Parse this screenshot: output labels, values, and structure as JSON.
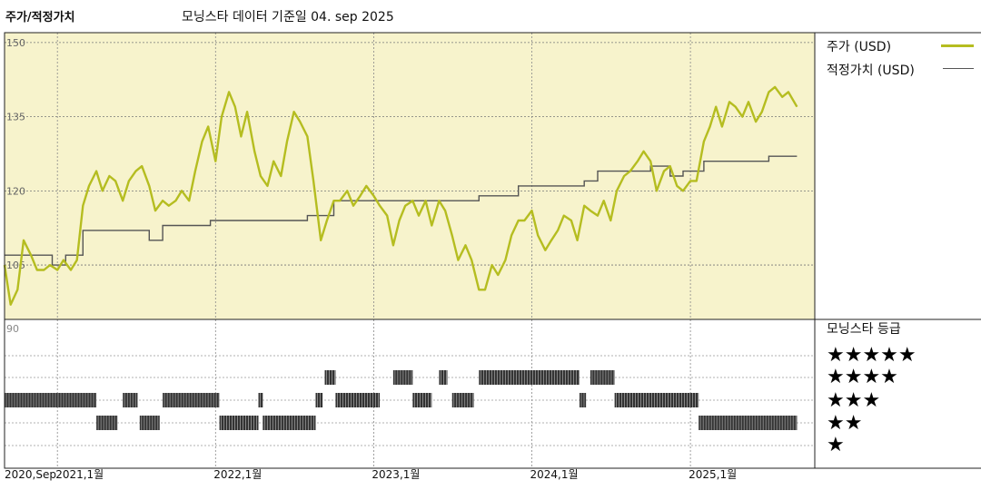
{
  "title": "주가/적정가치",
  "subtitle": "모닝스타 데이터 기준일 04. sep 2025",
  "legend": {
    "price_label": "주가 (USD)",
    "fair_label": "적정가치 (USD)",
    "price_color": "#b5bd20",
    "fair_color": "#555555"
  },
  "rating_panel": {
    "title": "모닝스타 등급",
    "levels": [
      "★★★★★",
      "★★★★",
      "★★★",
      "★★",
      "★"
    ]
  },
  "colors": {
    "price_area_bg": "#f7f3cc",
    "rating_bar": "#333333"
  },
  "chart_data": {
    "type": "line",
    "y_ticks": [
      {
        "value": 150,
        "label": "150"
      },
      {
        "value": 135,
        "label": "135"
      },
      {
        "value": 120,
        "label": "120"
      },
      {
        "value": 105,
        "label": "105"
      }
    ],
    "ylim": [
      94,
      152
    ],
    "rating_axis_label": "90",
    "x_ticks": [
      {
        "date": "2020-09-01",
        "label": "2020,Sep"
      },
      {
        "date": "2021-01-01",
        "label": "2021,1월"
      },
      {
        "date": "2022-01-01",
        "label": "2022,1월"
      },
      {
        "date": "2023-01-01",
        "label": "2023,1월"
      },
      {
        "date": "2024-01-01",
        "label": "2024,1월"
      },
      {
        "date": "2025-01-01",
        "label": "2025,1월"
      }
    ],
    "xlim": [
      "2020-09-01",
      "2025-10-15"
    ],
    "series": [
      {
        "name": "주가 (USD)",
        "points": [
          [
            "2020-09-01",
            105
          ],
          [
            "2020-09-15",
            97
          ],
          [
            "2020-10-01",
            100
          ],
          [
            "2020-10-15",
            110
          ],
          [
            "2020-11-01",
            107
          ],
          [
            "2020-11-15",
            104
          ],
          [
            "2020-12-01",
            104
          ],
          [
            "2020-12-15",
            105
          ],
          [
            "2021-01-01",
            104
          ],
          [
            "2021-01-15",
            106
          ],
          [
            "2021-02-01",
            104
          ],
          [
            "2021-02-15",
            106
          ],
          [
            "2021-03-01",
            117
          ],
          [
            "2021-03-15",
            121
          ],
          [
            "2021-04-01",
            124
          ],
          [
            "2021-04-15",
            120
          ],
          [
            "2021-05-01",
            123
          ],
          [
            "2021-05-15",
            122
          ],
          [
            "2021-06-01",
            118
          ],
          [
            "2021-06-15",
            122
          ],
          [
            "2021-07-01",
            124
          ],
          [
            "2021-07-15",
            125
          ],
          [
            "2021-08-01",
            121
          ],
          [
            "2021-08-15",
            116
          ],
          [
            "2021-09-01",
            118
          ],
          [
            "2021-09-15",
            117
          ],
          [
            "2021-10-01",
            118
          ],
          [
            "2021-10-15",
            120
          ],
          [
            "2021-11-01",
            118
          ],
          [
            "2021-11-15",
            124
          ],
          [
            "2021-12-01",
            130
          ],
          [
            "2021-12-15",
            133
          ],
          [
            "2022-01-01",
            126
          ],
          [
            "2022-01-15",
            135
          ],
          [
            "2022-02-01",
            140
          ],
          [
            "2022-02-15",
            137
          ],
          [
            "2022-03-01",
            131
          ],
          [
            "2022-03-15",
            136
          ],
          [
            "2022-04-01",
            128
          ],
          [
            "2022-04-15",
            123
          ],
          [
            "2022-05-01",
            121
          ],
          [
            "2022-05-15",
            126
          ],
          [
            "2022-06-01",
            123
          ],
          [
            "2022-06-15",
            130
          ],
          [
            "2022-07-01",
            136
          ],
          [
            "2022-07-15",
            134
          ],
          [
            "2022-08-01",
            131
          ],
          [
            "2022-08-15",
            122
          ],
          [
            "2022-09-01",
            110
          ],
          [
            "2022-09-15",
            114
          ],
          [
            "2022-10-01",
            118
          ],
          [
            "2022-10-15",
            118
          ],
          [
            "2022-11-01",
            120
          ],
          [
            "2022-11-15",
            117
          ],
          [
            "2022-12-01",
            119
          ],
          [
            "2022-12-15",
            121
          ],
          [
            "2023-01-01",
            119
          ],
          [
            "2023-01-15",
            117
          ],
          [
            "2023-02-01",
            115
          ],
          [
            "2023-02-15",
            109
          ],
          [
            "2023-03-01",
            114
          ],
          [
            "2023-03-15",
            117
          ],
          [
            "2023-04-01",
            118
          ],
          [
            "2023-04-15",
            115
          ],
          [
            "2023-05-01",
            118
          ],
          [
            "2023-05-15",
            113
          ],
          [
            "2023-06-01",
            118
          ],
          [
            "2023-06-15",
            116
          ],
          [
            "2023-07-01",
            111
          ],
          [
            "2023-07-15",
            106
          ],
          [
            "2023-08-01",
            109
          ],
          [
            "2023-08-15",
            106
          ],
          [
            "2023-09-01",
            100
          ],
          [
            "2023-09-15",
            100
          ],
          [
            "2023-10-01",
            105
          ],
          [
            "2023-10-15",
            103
          ],
          [
            "2023-11-01",
            106
          ],
          [
            "2023-11-15",
            111
          ],
          [
            "2023-12-01",
            114
          ],
          [
            "2023-12-15",
            114
          ],
          [
            "2024-01-01",
            116
          ],
          [
            "2024-01-15",
            111
          ],
          [
            "2024-02-01",
            108
          ],
          [
            "2024-02-15",
            110
          ],
          [
            "2024-03-01",
            112
          ],
          [
            "2024-03-15",
            115
          ],
          [
            "2024-04-01",
            114
          ],
          [
            "2024-04-15",
            110
          ],
          [
            "2024-05-01",
            117
          ],
          [
            "2024-05-15",
            116
          ],
          [
            "2024-06-01",
            115
          ],
          [
            "2024-06-15",
            118
          ],
          [
            "2024-07-01",
            114
          ],
          [
            "2024-07-15",
            120
          ],
          [
            "2024-08-01",
            123
          ],
          [
            "2024-08-15",
            124
          ],
          [
            "2024-09-01",
            126
          ],
          [
            "2024-09-15",
            128
          ],
          [
            "2024-10-01",
            126
          ],
          [
            "2024-10-15",
            120
          ],
          [
            "2024-11-01",
            124
          ],
          [
            "2024-11-15",
            125
          ],
          [
            "2024-12-01",
            121
          ],
          [
            "2024-12-15",
            120
          ],
          [
            "2025-01-01",
            122
          ],
          [
            "2025-01-15",
            122
          ],
          [
            "2025-02-01",
            130
          ],
          [
            "2025-02-15",
            133
          ],
          [
            "2025-03-01",
            137
          ],
          [
            "2025-03-15",
            133
          ],
          [
            "2025-04-01",
            138
          ],
          [
            "2025-04-15",
            137
          ],
          [
            "2025-05-01",
            135
          ],
          [
            "2025-05-15",
            138
          ],
          [
            "2025-06-01",
            134
          ],
          [
            "2025-06-15",
            136
          ],
          [
            "2025-07-01",
            140
          ],
          [
            "2025-07-15",
            141
          ],
          [
            "2025-08-01",
            139
          ],
          [
            "2025-08-15",
            140
          ],
          [
            "2025-09-04",
            137
          ]
        ]
      },
      {
        "name": "적정가치 (USD)",
        "points": [
          [
            "2020-09-01",
            107
          ],
          [
            "2020-12-20",
            107
          ],
          [
            "2020-12-20",
            105
          ],
          [
            "2021-01-20",
            105
          ],
          [
            "2021-01-20",
            107
          ],
          [
            "2021-03-01",
            107
          ],
          [
            "2021-03-01",
            112
          ],
          [
            "2021-08-01",
            112
          ],
          [
            "2021-08-01",
            110
          ],
          [
            "2021-09-01",
            110
          ],
          [
            "2021-09-01",
            113
          ],
          [
            "2021-12-20",
            113
          ],
          [
            "2021-12-20",
            114
          ],
          [
            "2022-08-01",
            114
          ],
          [
            "2022-08-01",
            115
          ],
          [
            "2022-10-01",
            115
          ],
          [
            "2022-10-01",
            118
          ],
          [
            "2023-09-01",
            118
          ],
          [
            "2023-09-01",
            119
          ],
          [
            "2023-12-01",
            119
          ],
          [
            "2023-12-01",
            121
          ],
          [
            "2024-05-01",
            121
          ],
          [
            "2024-05-01",
            122
          ],
          [
            "2024-06-01",
            122
          ],
          [
            "2024-06-01",
            124
          ],
          [
            "2024-10-01",
            124
          ],
          [
            "2024-10-01",
            125
          ],
          [
            "2024-11-15",
            125
          ],
          [
            "2024-11-15",
            123
          ],
          [
            "2024-12-15",
            123
          ],
          [
            "2024-12-15",
            124
          ],
          [
            "2025-02-01",
            124
          ],
          [
            "2025-02-01",
            126
          ],
          [
            "2025-07-01",
            126
          ],
          [
            "2025-07-01",
            127
          ],
          [
            "2025-09-04",
            127
          ]
        ]
      }
    ],
    "rating_segments": [
      {
        "stars": 3,
        "start": "2020-09-01",
        "end": "2021-04-01"
      },
      {
        "stars": 2,
        "start": "2021-04-01",
        "end": "2021-05-20"
      },
      {
        "stars": 3,
        "start": "2021-06-01",
        "end": "2021-07-05"
      },
      {
        "stars": 2,
        "start": "2021-07-10",
        "end": "2021-08-25"
      },
      {
        "stars": 3,
        "start": "2021-09-01",
        "end": "2022-01-10"
      },
      {
        "stars": 2,
        "start": "2022-01-10",
        "end": "2022-04-10"
      },
      {
        "stars": 3,
        "start": "2022-04-10",
        "end": "2022-04-20"
      },
      {
        "stars": 2,
        "start": "2022-04-20",
        "end": "2022-08-20"
      },
      {
        "stars": 3,
        "start": "2022-08-20",
        "end": "2022-09-05"
      },
      {
        "stars": 4,
        "start": "2022-09-10",
        "end": "2022-10-05"
      },
      {
        "stars": 3,
        "start": "2022-10-05",
        "end": "2023-01-15"
      },
      {
        "stars": 4,
        "start": "2023-02-15",
        "end": "2023-04-01"
      },
      {
        "stars": 3,
        "start": "2023-04-01",
        "end": "2023-05-15"
      },
      {
        "stars": 4,
        "start": "2023-06-01",
        "end": "2023-06-20"
      },
      {
        "stars": 3,
        "start": "2023-07-01",
        "end": "2023-08-20"
      },
      {
        "stars": 4,
        "start": "2023-09-01",
        "end": "2024-04-20"
      },
      {
        "stars": 3,
        "start": "2024-04-20",
        "end": "2024-05-05"
      },
      {
        "stars": 4,
        "start": "2024-05-15",
        "end": "2024-07-10"
      },
      {
        "stars": 3,
        "start": "2024-07-10",
        "end": "2025-01-20"
      },
      {
        "stars": 2,
        "start": "2025-01-20",
        "end": "2025-09-04"
      }
    ]
  }
}
